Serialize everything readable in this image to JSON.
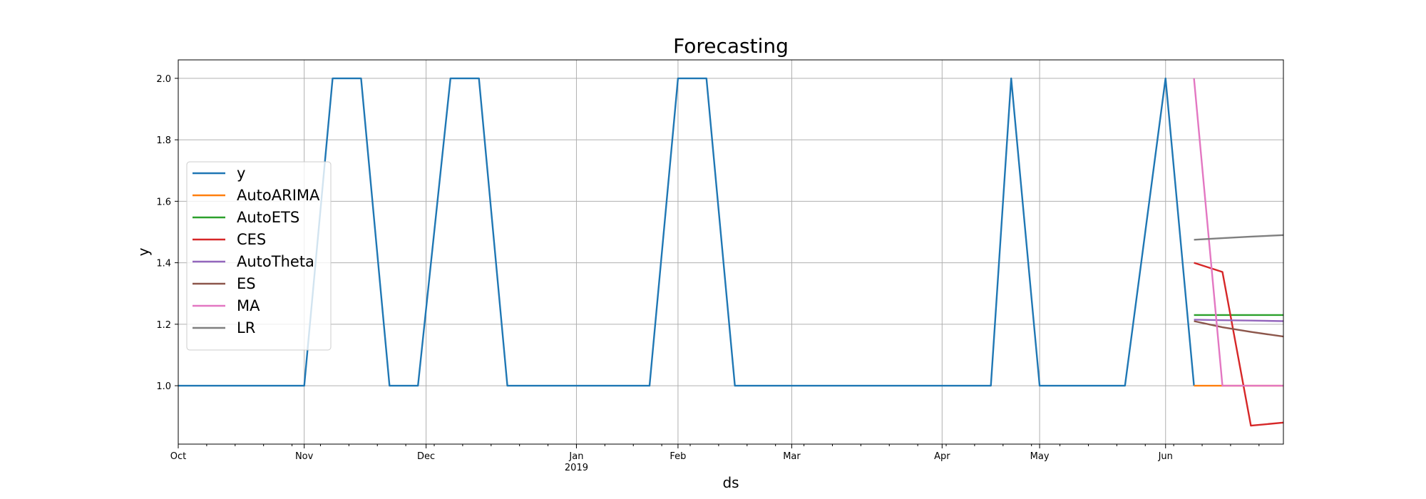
{
  "chart_data": {
    "type": "line",
    "title": "Forecasting",
    "xlabel": "ds",
    "ylabel": "y",
    "x_range": [
      "2018-10-01",
      "2019-06-30"
    ],
    "ylim": [
      0.81,
      2.06
    ],
    "grid": true,
    "legend_placement": "center-left",
    "x_ticks": [
      {
        "date": "2018-10-01",
        "label": "Oct",
        "sublabel": ""
      },
      {
        "date": "2018-11-01",
        "label": "Nov",
        "sublabel": ""
      },
      {
        "date": "2018-12-01",
        "label": "Dec",
        "sublabel": ""
      },
      {
        "date": "2019-01-07",
        "label": "Jan",
        "sublabel": "2019"
      },
      {
        "date": "2019-02-01",
        "label": "Feb",
        "sublabel": ""
      },
      {
        "date": "2019-03-01",
        "label": "Mar",
        "sublabel": ""
      },
      {
        "date": "2019-04-07",
        "label": "Apr",
        "sublabel": ""
      },
      {
        "date": "2019-05-01",
        "label": "May",
        "sublabel": ""
      },
      {
        "date": "2019-06-01",
        "label": "Jun",
        "sublabel": ""
      }
    ],
    "y_ticks": [
      1.0,
      1.2,
      1.4,
      1.6,
      1.8,
      2.0
    ],
    "y_tick_labels": [
      "1.0",
      "1.2",
      "1.4",
      "1.6",
      "1.8",
      "2.0"
    ],
    "series": [
      {
        "name": "y",
        "color": "#1f77b4",
        "points": [
          [
            "2018-10-01",
            1
          ],
          [
            "2018-10-08",
            1
          ],
          [
            "2018-10-15",
            1
          ],
          [
            "2018-10-22",
            1
          ],
          [
            "2018-10-29",
            1
          ],
          [
            "2018-11-01",
            1
          ],
          [
            "2018-11-08",
            2
          ],
          [
            "2018-11-15",
            2
          ],
          [
            "2018-11-22",
            1
          ],
          [
            "2018-11-29",
            1
          ],
          [
            "2018-12-07",
            2
          ],
          [
            "2018-12-14",
            2
          ],
          [
            "2018-12-21",
            1
          ],
          [
            "2018-12-28",
            1
          ],
          [
            "2019-01-04",
            1
          ],
          [
            "2019-01-11",
            1
          ],
          [
            "2019-01-18",
            1
          ],
          [
            "2019-01-25",
            1
          ],
          [
            "2019-02-01",
            2
          ],
          [
            "2019-02-08",
            2
          ],
          [
            "2019-02-15",
            1
          ],
          [
            "2019-02-22",
            1
          ],
          [
            "2019-03-01",
            1
          ],
          [
            "2019-03-08",
            1
          ],
          [
            "2019-03-15",
            1
          ],
          [
            "2019-03-22",
            1
          ],
          [
            "2019-03-29",
            1
          ],
          [
            "2019-04-05",
            1
          ],
          [
            "2019-04-12",
            1
          ],
          [
            "2019-04-19",
            1
          ],
          [
            "2019-04-24",
            2
          ],
          [
            "2019-05-01",
            1
          ],
          [
            "2019-05-08",
            1
          ],
          [
            "2019-05-15",
            1
          ],
          [
            "2019-05-22",
            1
          ],
          [
            "2019-06-01",
            2
          ],
          [
            "2019-06-08",
            1
          ]
        ]
      },
      {
        "name": "AutoARIMA",
        "color": "#ff7f0e",
        "points": [
          [
            "2019-06-08",
            1.0
          ],
          [
            "2019-06-15",
            1.0
          ],
          [
            "2019-06-22",
            1.0
          ],
          [
            "2019-06-30",
            1.0
          ]
        ]
      },
      {
        "name": "AutoETS",
        "color": "#2ca02c",
        "points": [
          [
            "2019-06-08",
            1.23
          ],
          [
            "2019-06-15",
            1.23
          ],
          [
            "2019-06-22",
            1.23
          ],
          [
            "2019-06-30",
            1.23
          ]
        ]
      },
      {
        "name": "CES",
        "color": "#d62728",
        "points": [
          [
            "2019-06-08",
            1.4
          ],
          [
            "2019-06-15",
            1.37
          ],
          [
            "2019-06-22",
            0.87
          ],
          [
            "2019-06-30",
            0.88
          ]
        ]
      },
      {
        "name": "AutoTheta",
        "color": "#9467bd",
        "points": [
          [
            "2019-06-08",
            1.215
          ],
          [
            "2019-06-15",
            1.213
          ],
          [
            "2019-06-22",
            1.212
          ],
          [
            "2019-06-30",
            1.21
          ]
        ]
      },
      {
        "name": "ES",
        "color": "#8c564b",
        "points": [
          [
            "2019-06-08",
            1.21
          ],
          [
            "2019-06-15",
            1.19
          ],
          [
            "2019-06-22",
            1.175
          ],
          [
            "2019-06-30",
            1.16
          ]
        ]
      },
      {
        "name": "MA",
        "color": "#e377c2",
        "points": [
          [
            "2019-06-08",
            2.0
          ],
          [
            "2019-06-15",
            1.0
          ],
          [
            "2019-06-22",
            1.0
          ],
          [
            "2019-06-30",
            1.0
          ]
        ]
      },
      {
        "name": "LR",
        "color": "#7f7f7f",
        "points": [
          [
            "2019-06-08",
            1.475
          ],
          [
            "2019-06-15",
            1.48
          ],
          [
            "2019-06-22",
            1.485
          ],
          [
            "2019-06-30",
            1.49
          ]
        ]
      }
    ]
  }
}
